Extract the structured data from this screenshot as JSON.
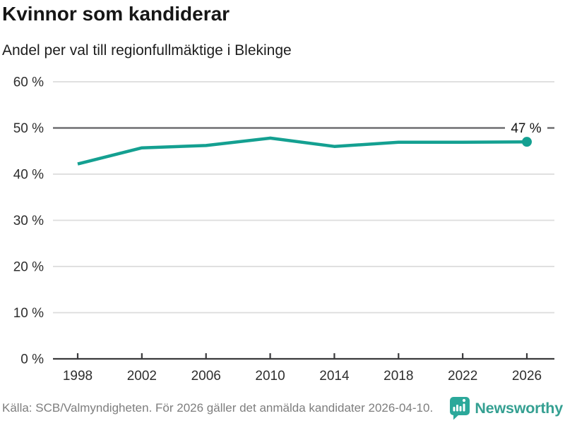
{
  "chart_data": {
    "type": "line",
    "title": "Kvinnor som kandiderar",
    "subtitle": "Andel per val till regionfullmäktige i Blekinge",
    "x": [
      1998,
      2002,
      2006,
      2010,
      2014,
      2018,
      2022,
      2026
    ],
    "values": [
      42.2,
      45.7,
      46.2,
      47.8,
      46.0,
      46.9,
      46.9,
      47.0
    ],
    "ylim": [
      0,
      60
    ],
    "y_ticks": [
      0,
      10,
      20,
      30,
      40,
      50,
      60
    ],
    "y_tick_suffix": " %",
    "reference_line": 50,
    "end_label": "47 %",
    "grid": "horizontal",
    "legend": "none",
    "line_color": "#14a091",
    "marker_color": "#14a091"
  },
  "footer": {
    "source": "Källa: SCB/Valmyndigheten. För 2026 gäller det anmälda kandidater 2026-04-10.",
    "brand": "Newsworthy",
    "brand_color": "#35a092",
    "logo_color": "#2ba89a"
  }
}
